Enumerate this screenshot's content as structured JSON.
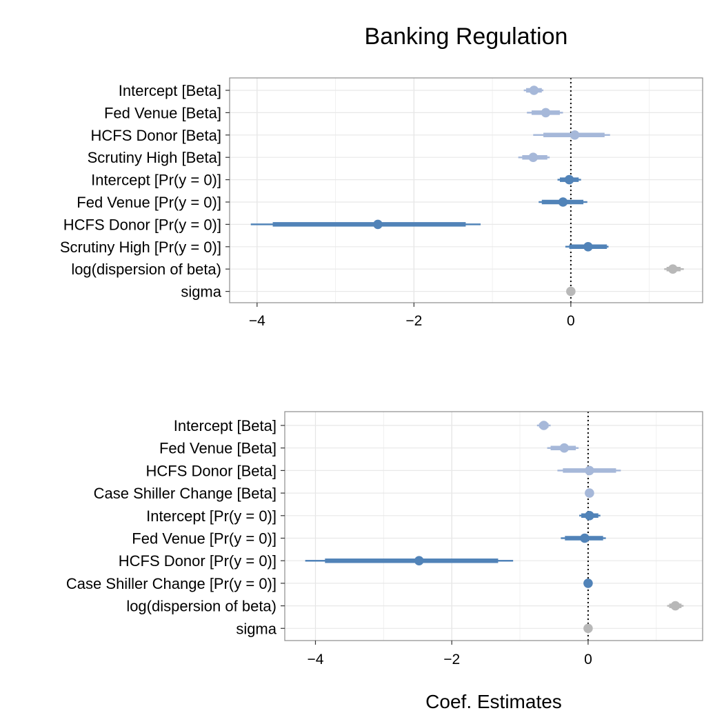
{
  "title": "Banking Regulation",
  "xlabel": "Coef. Estimates",
  "colors": {
    "beta": "#a6b8d9",
    "prob": "#5183b8",
    "other": "#b8b8b8"
  },
  "chart_data": [
    {
      "type": "scatter",
      "subtype": "coefficient-plot",
      "xticks": [
        -4,
        -2,
        0
      ],
      "xlim": [
        -4.35,
        1.68
      ],
      "reference_line": 0,
      "grid": true,
      "rows": [
        {
          "label": "Intercept [Beta]",
          "estimate": -0.47,
          "inner": [
            -0.57,
            -0.37
          ],
          "outer": [
            -0.6,
            -0.35
          ],
          "group": "beta"
        },
        {
          "label": "Fed Venue [Beta]",
          "estimate": -0.32,
          "inner": [
            -0.5,
            -0.14
          ],
          "outer": [
            -0.56,
            -0.1
          ],
          "group": "beta"
        },
        {
          "label": "HCFS Donor [Beta]",
          "estimate": 0.05,
          "inner": [
            -0.35,
            0.43
          ],
          "outer": [
            -0.48,
            0.5
          ],
          "group": "beta"
        },
        {
          "label": "Scrutiny High [Beta]",
          "estimate": -0.48,
          "inner": [
            -0.62,
            -0.3
          ],
          "outer": [
            -0.67,
            -0.27
          ],
          "group": "beta"
        },
        {
          "label": "Intercept [Pr(y = 0)]",
          "estimate": -0.02,
          "inner": [
            -0.14,
            0.1
          ],
          "outer": [
            -0.17,
            0.13
          ],
          "group": "prob"
        },
        {
          "label": "Fed Venue [Pr(y = 0)]",
          "estimate": -0.1,
          "inner": [
            -0.37,
            0.16
          ],
          "outer": [
            -0.41,
            0.21
          ],
          "group": "prob"
        },
        {
          "label": "HCFS Donor [Pr(y = 0)]",
          "estimate": -2.46,
          "inner": [
            -3.8,
            -1.34
          ],
          "outer": [
            -4.08,
            -1.15
          ],
          "group": "prob"
        },
        {
          "label": "Scrutiny High [Pr(y = 0)]",
          "estimate": 0.22,
          "inner": [
            -0.02,
            0.46
          ],
          "outer": [
            -0.07,
            0.48
          ],
          "group": "prob"
        },
        {
          "label": "log(dispersion of beta)",
          "estimate": 1.3,
          "inner": [
            1.22,
            1.4
          ],
          "outer": [
            1.19,
            1.44
          ],
          "group": "other"
        },
        {
          "label": "sigma",
          "estimate": 0.0,
          "inner": [
            -0.03,
            0.03
          ],
          "outer": [
            -0.04,
            0.04
          ],
          "group": "other"
        }
      ]
    },
    {
      "type": "scatter",
      "subtype": "coefficient-plot",
      "xticks": [
        -4,
        -2,
        0
      ],
      "xlim": [
        -4.45,
        1.68
      ],
      "reference_line": 0,
      "grid": true,
      "rows": [
        {
          "label": "Intercept [Beta]",
          "estimate": -0.65,
          "inner": [
            -0.72,
            -0.58
          ],
          "outer": [
            -0.75,
            -0.55
          ],
          "group": "beta"
        },
        {
          "label": "Fed Venue [Beta]",
          "estimate": -0.35,
          "inner": [
            -0.55,
            -0.18
          ],
          "outer": [
            -0.6,
            -0.14
          ],
          "group": "beta"
        },
        {
          "label": "HCFS Donor [Beta]",
          "estimate": 0.02,
          "inner": [
            -0.37,
            0.41
          ],
          "outer": [
            -0.45,
            0.48
          ],
          "group": "beta"
        },
        {
          "label": "Case Shiller Change [Beta]",
          "estimate": 0.02,
          "inner": [
            -0.02,
            0.06
          ],
          "outer": [
            -0.04,
            0.08
          ],
          "group": "beta"
        },
        {
          "label": "Intercept [Pr(y = 0)]",
          "estimate": 0.02,
          "inner": [
            -0.1,
            0.15
          ],
          "outer": [
            -0.13,
            0.18
          ],
          "group": "prob"
        },
        {
          "label": "Fed Venue [Pr(y = 0)]",
          "estimate": -0.05,
          "inner": [
            -0.34,
            0.22
          ],
          "outer": [
            -0.4,
            0.26
          ],
          "group": "prob"
        },
        {
          "label": "HCFS Donor [Pr(y = 0)]",
          "estimate": -2.48,
          "inner": [
            -3.86,
            -1.32
          ],
          "outer": [
            -4.15,
            -1.1
          ],
          "group": "prob"
        },
        {
          "label": "Case Shiller Change [Pr(y = 0)]",
          "estimate": 0.0,
          "inner": [
            -0.04,
            0.04
          ],
          "outer": [
            -0.05,
            0.05
          ],
          "group": "prob"
        },
        {
          "label": "log(dispersion of beta)",
          "estimate": 1.28,
          "inner": [
            1.19,
            1.37
          ],
          "outer": [
            1.16,
            1.4
          ],
          "group": "other"
        },
        {
          "label": "sigma",
          "estimate": 0.0,
          "inner": [
            -0.03,
            0.03
          ],
          "outer": [
            -0.04,
            0.04
          ],
          "group": "other"
        }
      ]
    }
  ]
}
